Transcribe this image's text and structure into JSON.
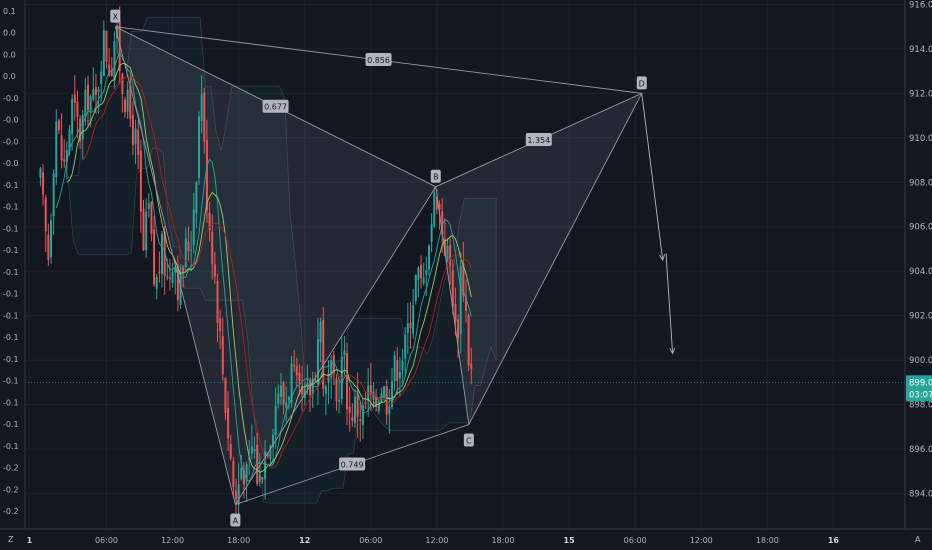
{
  "chart_data": {
    "type": "candlestick",
    "title": "",
    "y_axis_right": {
      "ticks": [
        894,
        896,
        898,
        900,
        902,
        904,
        906,
        908,
        910,
        912,
        914,
        916
      ],
      "range": [
        892.4,
        916.2
      ],
      "unit_label": "A"
    },
    "y_axis_left": {
      "ticks": [
        "0.1",
        "0.0",
        "0.0",
        "0.0",
        "-0.0",
        "-0.0",
        "-0.0",
        "-0.0",
        "-0.1",
        "-0.1",
        "-0.1",
        "-0.1",
        "-0.1",
        "-0.1",
        "-0.1",
        "-0.1",
        "-0.1",
        "-0.1",
        "-0.1",
        "-0.1",
        "-0.1",
        "-0.2",
        "-0.2",
        "-0.2"
      ],
      "unit_label": "Z"
    },
    "x_axis": {
      "ticks": [
        {
          "label": "1",
          "t": -1.0
        },
        {
          "label": "06:00",
          "t": 6
        },
        {
          "label": "12:00",
          "t": 12
        },
        {
          "label": "18:00",
          "t": 18
        },
        {
          "label": "12",
          "t": 24
        },
        {
          "label": "06:00",
          "t": 30
        },
        {
          "label": "12:00",
          "t": 36
        },
        {
          "label": "18:00",
          "t": 42
        },
        {
          "label": "15",
          "t": 48
        },
        {
          "label": "06:00",
          "t": 54
        },
        {
          "label": "12:00",
          "t": 60
        },
        {
          "label": "18:00",
          "t": 66
        },
        {
          "label": "16",
          "t": 72
        }
      ],
      "range": [
        -1.4,
        78.5
      ]
    },
    "last_price": {
      "value": "899.0",
      "countdown": "03:07",
      "price": 899.0
    },
    "pattern": {
      "points": [
        {
          "label": "X",
          "t": 6.8,
          "price": 915.0
        },
        {
          "label": "A",
          "t": 17.7,
          "price": 893.5
        },
        {
          "label": "B",
          "t": 35.9,
          "price": 907.8
        },
        {
          "label": "C",
          "t": 38.9,
          "price": 897.1
        },
        {
          "label": "D",
          "t": 54.6,
          "price": 912.0
        }
      ],
      "ratios": [
        {
          "label": "0.677",
          "between": [
            "X",
            "B"
          ]
        },
        {
          "label": "0.749",
          "between": [
            "A",
            "C"
          ]
        },
        {
          "label": "1.354",
          "between": [
            "B",
            "D"
          ]
        },
        {
          "label": "0.856",
          "between": [
            "X",
            "D"
          ]
        }
      ]
    },
    "projection_arrows": [
      {
        "from_t": 54.6,
        "from_price": 912.0,
        "to_t": 56.5,
        "to_price": 904.5
      },
      {
        "from_t": 56.8,
        "from_price": 904.8,
        "to_t": 57.4,
        "to_price": 900.3
      }
    ],
    "price_path": [
      [
        0.0,
        908.0
      ],
      [
        0.7,
        904.5
      ],
      [
        1.4,
        911.0
      ],
      [
        2.1,
        908.5
      ],
      [
        2.9,
        911.5
      ],
      [
        3.6,
        910.2
      ],
      [
        4.3,
        912.0
      ],
      [
        5.0,
        911.5
      ],
      [
        5.7,
        914.5
      ],
      [
        6.4,
        913.0
      ],
      [
        6.8,
        915.0
      ],
      [
        7.4,
        912.5
      ],
      [
        8.1,
        911.0
      ],
      [
        8.8,
        909.5
      ],
      [
        9.3,
        904.5
      ],
      [
        9.8,
        907.0
      ],
      [
        10.4,
        903.0
      ],
      [
        11.0,
        905.0
      ],
      [
        11.6,
        903.5
      ],
      [
        12.1,
        905.0
      ],
      [
        12.6,
        903.0
      ],
      [
        13.2,
        905.0
      ],
      [
        13.7,
        905.5
      ],
      [
        14.2,
        909.0
      ],
      [
        14.6,
        912.8
      ],
      [
        15.0,
        908.0
      ],
      [
        15.4,
        906.0
      ],
      [
        15.9,
        903.5
      ],
      [
        16.4,
        900.5
      ],
      [
        16.9,
        897.5
      ],
      [
        17.3,
        895.5
      ],
      [
        17.7,
        893.5
      ],
      [
        18.3,
        895.5
      ],
      [
        18.8,
        894.5
      ],
      [
        19.3,
        896.5
      ],
      [
        19.8,
        894.3
      ],
      [
        20.4,
        896.0
      ],
      [
        21.0,
        897.0
      ],
      [
        21.6,
        898.8
      ],
      [
        22.2,
        898.0
      ],
      [
        22.8,
        899.5
      ],
      [
        23.3,
        898.5
      ],
      [
        23.9,
        898.0
      ],
      [
        24.5,
        898.7
      ],
      [
        24.9,
        899.5
      ],
      [
        25.4,
        902.0
      ],
      [
        25.8,
        898.0
      ],
      [
        26.3,
        899.5
      ],
      [
        26.9,
        898.0
      ],
      [
        27.5,
        900.5
      ],
      [
        28.0,
        897.5
      ],
      [
        28.6,
        898.0
      ],
      [
        29.2,
        897.5
      ],
      [
        29.8,
        898.5
      ],
      [
        30.3,
        897.8
      ],
      [
        30.9,
        899.0
      ],
      [
        31.5,
        898.2
      ],
      [
        32.0,
        899.5
      ],
      [
        32.6,
        900.0
      ],
      [
        33.1,
        900.5
      ],
      [
        33.7,
        902.5
      ],
      [
        34.2,
        904.0
      ],
      [
        34.7,
        903.0
      ],
      [
        35.2,
        905.5
      ],
      [
        35.6,
        906.5
      ],
      [
        35.9,
        907.8
      ],
      [
        36.3,
        906.5
      ],
      [
        36.8,
        905.0
      ],
      [
        37.3,
        904.0
      ],
      [
        37.8,
        900.5
      ],
      [
        38.2,
        904.5
      ],
      [
        38.6,
        902.5
      ],
      [
        38.9,
        900.0
      ],
      [
        39.3,
        899.0
      ]
    ]
  }
}
